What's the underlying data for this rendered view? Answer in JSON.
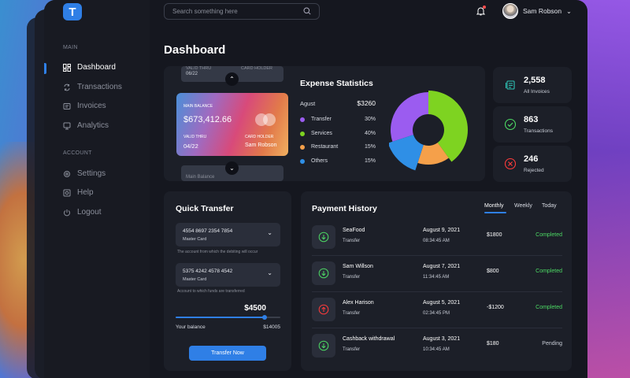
{
  "brand": {
    "logo_letter": "T",
    "accent": "#2f7fe6"
  },
  "sidebar": {
    "main_label": "MAIN",
    "items": [
      {
        "label": "Dashboard",
        "icon": "dashboard-icon"
      },
      {
        "label": "Transactions",
        "icon": "transactions-icon"
      },
      {
        "label": "Invoices",
        "icon": "invoices-icon"
      },
      {
        "label": "Analytics",
        "icon": "analytics-icon"
      }
    ],
    "account_label": "ACCOUNT",
    "account_items": [
      {
        "label": "Settings",
        "icon": "gear-icon"
      },
      {
        "label": "Help",
        "icon": "help-icon"
      },
      {
        "label": "Logout",
        "icon": "power-icon"
      }
    ]
  },
  "header": {
    "search_placeholder": "Search something here",
    "user_name": "Sam Robson"
  },
  "page_title": "Dashboard",
  "card": {
    "top_ghost_left": "06/22",
    "top_ghost_small1": "VALID THRU",
    "top_ghost_small2": "CARD HOLDER",
    "label": "MAIN BALANCE",
    "balance": "$673,412.66",
    "valid_label": "VALID THRU",
    "valid": "04/22",
    "holder_label": "CARD HOLDER",
    "holder": "Sam Robson",
    "bottom_ghost": "Main Balance"
  },
  "expense": {
    "title": "Expense Statistics",
    "month": "Agust",
    "total": "$3260",
    "items": [
      {
        "label": "Transfer",
        "pct": "30%",
        "color": "#9b5cf0"
      },
      {
        "label": "Services",
        "pct": "40%",
        "color": "#7ed321"
      },
      {
        "label": "Restaurant",
        "pct": "15%",
        "color": "#f5a04a"
      },
      {
        "label": "Others",
        "pct": "15%",
        "color": "#2f8fe6"
      }
    ]
  },
  "chart_data": {
    "type": "pie",
    "categories": [
      "Transfer",
      "Services",
      "Restaurant",
      "Others"
    ],
    "values": [
      30,
      40,
      15,
      15
    ],
    "colors": [
      "#9b5cf0",
      "#7ed321",
      "#f5a04a",
      "#2f8fe6"
    ]
  },
  "stats": [
    {
      "value": "2,558",
      "label": "All Invoices",
      "icon": "invoice-icon",
      "color": "#2ec4b6"
    },
    {
      "value": "863",
      "label": "Transactions",
      "icon": "check-circle-icon",
      "color": "#4cd964"
    },
    {
      "value": "246",
      "label": "Rejected",
      "icon": "x-circle-icon",
      "color": "#ff3b3b"
    }
  ],
  "quick_transfer": {
    "title": "Quick Transfer",
    "from_number": "4554 8697 2354 7854",
    "from_type": "Master Card",
    "from_note": "The account from which the debiting will occur",
    "to_number": "5375 4242 4578 4542",
    "to_type": "Master Card",
    "to_note": "Account to which funds are transferred",
    "amount": "$4500",
    "amount_fraction": 0.85,
    "balance_label": "Your balance",
    "balance": "$14005",
    "button": "Transfer Now"
  },
  "payment_history": {
    "title": "Payment History",
    "tabs": [
      "Monthly",
      "Weekly",
      "Today"
    ],
    "rows": [
      {
        "name": "SeaFood",
        "type": "Transfer",
        "date": "August 9, 2021",
        "time": "08:34:45 AM",
        "amount": "$1800",
        "status": "Completed",
        "dir": "in"
      },
      {
        "name": "Sam Willson",
        "type": "Transfer",
        "date": "August 7, 2021",
        "time": "11:34:45 AM",
        "amount": "$800",
        "status": "Completed",
        "dir": "in"
      },
      {
        "name": "Alex Harison",
        "type": "Transfer",
        "date": "August  5, 2021",
        "time": "02:34:45 PM",
        "amount": "-$1200",
        "status": "Completed",
        "dir": "out"
      },
      {
        "name": "Cashback withdrawal",
        "type": "Transfer",
        "date": "August 3, 2021",
        "time": "10:34:45 AM",
        "amount": "$180",
        "status": "Pending",
        "dir": "in"
      }
    ]
  }
}
